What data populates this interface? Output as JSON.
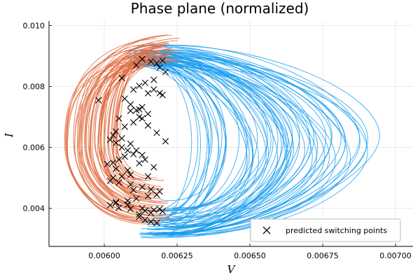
{
  "chart_data": {
    "type": "scatter",
    "title": "Phase plane (normalized)",
    "xlabel": "V",
    "ylabel": "I",
    "xlim": [
      0.00581,
      0.00706
    ],
    "ylim": [
      0.00275,
      0.01015
    ],
    "xticks": [
      0.006,
      0.00625,
      0.0065,
      0.00675,
      0.007
    ],
    "xtick_labels": [
      "0.00600",
      "0.00625",
      "0.00650",
      "0.00675",
      "0.00700"
    ],
    "yticks": [
      0.004,
      0.006,
      0.008,
      0.01
    ],
    "ytick_labels": [
      "0.004",
      "0.006",
      "0.008",
      "0.010"
    ],
    "grid": true,
    "legend_position": "bottom-right",
    "legend": [
      "predicted switching points"
    ],
    "colors": {
      "trajectory_blue": "#1a9df0",
      "trajectory_orange": "#e1683c",
      "markers": "#000000"
    },
    "trajectory_summary": {
      "blue_V_range": [
        0.00605,
        0.00702
      ],
      "blue_I_range": [
        0.0029,
        0.0097
      ],
      "orange_V_range": [
        0.00585,
        0.00625
      ],
      "orange_I_range": [
        0.0032,
        0.01
      ]
    },
    "series": [
      {
        "name": "predicted switching points",
        "marker": "x",
        "x": [
          0.00598,
          0.00606,
          0.00611,
          0.00613,
          0.00616,
          0.00618,
          0.0062,
          0.00619,
          0.00621,
          0.00617,
          0.00614,
          0.00612,
          0.0061,
          0.00615,
          0.00617,
          0.00619,
          0.0062,
          0.00607,
          0.00609,
          0.00611,
          0.00613,
          0.00605,
          0.00603,
          0.00602,
          0.00604,
          0.00606,
          0.00608,
          0.0061,
          0.00607,
          0.00605,
          0.00603,
          0.00601,
          0.00604,
          0.00608,
          0.00612,
          0.00614,
          0.00613,
          0.00611,
          0.00609,
          0.00606,
          0.00604,
          0.00607,
          0.0061,
          0.00613,
          0.00615,
          0.00612,
          0.00609,
          0.00606,
          0.00603,
          0.00602,
          0.00605,
          0.00609,
          0.00613,
          0.00616,
          0.00619,
          0.00618,
          0.00615,
          0.00611,
          0.00608,
          0.00604,
          0.00602,
          0.00605,
          0.00609,
          0.00614,
          0.00617,
          0.00619,
          0.0062,
          0.00616,
          0.00612,
          0.00612,
          0.00614,
          0.00616,
          0.00618,
          0.00613,
          0.00608,
          0.00604,
          0.0061,
          0.00615,
          0.00617,
          0.00621,
          0.00618,
          0.00615,
          0.00612,
          0.00609
        ],
        "y": [
          0.00755,
          0.00828,
          0.0087,
          0.0089,
          0.00882,
          0.00876,
          0.00885,
          0.00862,
          0.00848,
          0.00822,
          0.00812,
          0.00802,
          0.0079,
          0.00778,
          0.0079,
          0.00778,
          0.00772,
          0.0076,
          0.00741,
          0.00722,
          0.00732,
          0.00695,
          0.0064,
          0.00625,
          0.00615,
          0.006,
          0.0059,
          0.00578,
          0.0057,
          0.0056,
          0.0055,
          0.00545,
          0.0053,
          0.00525,
          0.00548,
          0.0056,
          0.00575,
          0.0059,
          0.00612,
          0.0063,
          0.00652,
          0.00668,
          0.00682,
          0.00695,
          0.0071,
          0.00725,
          0.0051,
          0.00505,
          0.005,
          0.0049,
          0.00485,
          0.00478,
          0.0047,
          0.00462,
          0.00455,
          0.00445,
          0.0044,
          0.00432,
          0.00425,
          0.00418,
          0.0041,
          0.00402,
          0.00398,
          0.00392,
          0.00395,
          0.00398,
          0.0039,
          0.00385,
          0.0038,
          0.00372,
          0.00362,
          0.00356,
          0.00352,
          0.004,
          0.00412,
          0.0042,
          0.0046,
          0.00505,
          0.00535,
          0.0062,
          0.00648,
          0.00672,
          0.007,
          0.0072
        ]
      }
    ]
  }
}
